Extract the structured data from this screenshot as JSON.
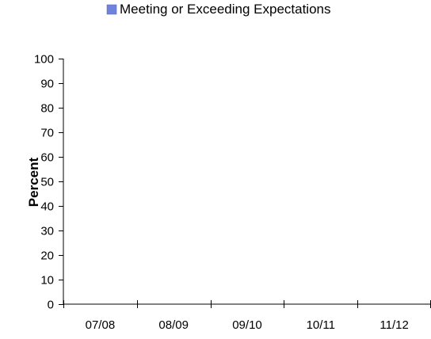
{
  "chart_data": {
    "type": "bar",
    "categories": [
      "07/08",
      "08/09",
      "09/10",
      "10/11",
      "11/12"
    ],
    "series": [
      {
        "name": "Meeting or Exceeding Expectations",
        "values": [
          null,
          null,
          null,
          null,
          null
        ],
        "color": "#6f83dc"
      }
    ],
    "ylabel": "Percent",
    "xlabel": "",
    "ylim": [
      0,
      100
    ],
    "yticks": [
      0,
      10,
      20,
      30,
      40,
      50,
      60,
      70,
      80,
      90,
      100
    ],
    "legend_position": "top",
    "grid": false
  }
}
